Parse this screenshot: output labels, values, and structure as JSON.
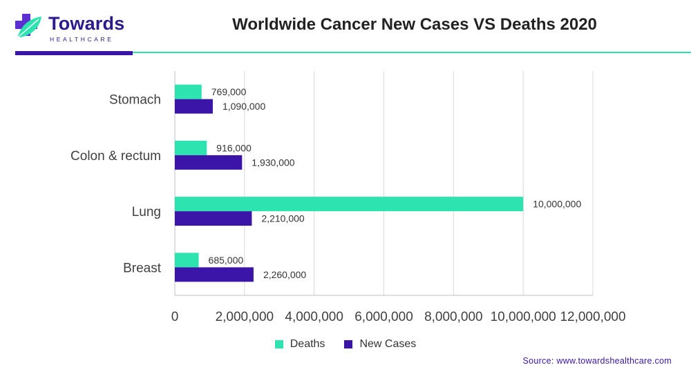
{
  "brand": {
    "name": "Towards",
    "sub": "HEALTHCARE"
  },
  "colors": {
    "deaths": "#2de3b0",
    "new_cases": "#3b14a8",
    "accent": "#3b14a8",
    "grid": "#d9d9d9"
  },
  "source": "Source: www.towardshealthcare.com",
  "chart_data": {
    "type": "bar",
    "orientation": "horizontal",
    "title": "Worldwide Cancer New Cases VS Deaths 2020",
    "categories": [
      "Stomach",
      "Colon & rectum",
      "Lung",
      "Breast"
    ],
    "series": [
      {
        "name": "Deaths",
        "values": [
          769000,
          916000,
          10000000,
          685000
        ],
        "labels": [
          "769,000",
          "916,000",
          "10,000,000",
          "685,000"
        ]
      },
      {
        "name": "New Cases",
        "values": [
          1090000,
          1930000,
          2210000,
          2260000
        ],
        "labels": [
          "1,090,000",
          "1,930,000",
          "2,210,000",
          "2,260,000"
        ]
      }
    ],
    "xlim": [
      0,
      12000000
    ],
    "xticks": [
      0,
      2000000,
      4000000,
      6000000,
      8000000,
      10000000,
      12000000
    ],
    "xtick_labels": [
      "0",
      "2,000,000",
      "4,000,000",
      "6,000,000",
      "8,000,000",
      "10,000,000",
      "12,000,000"
    ],
    "grid": true,
    "legend": "bottom"
  }
}
